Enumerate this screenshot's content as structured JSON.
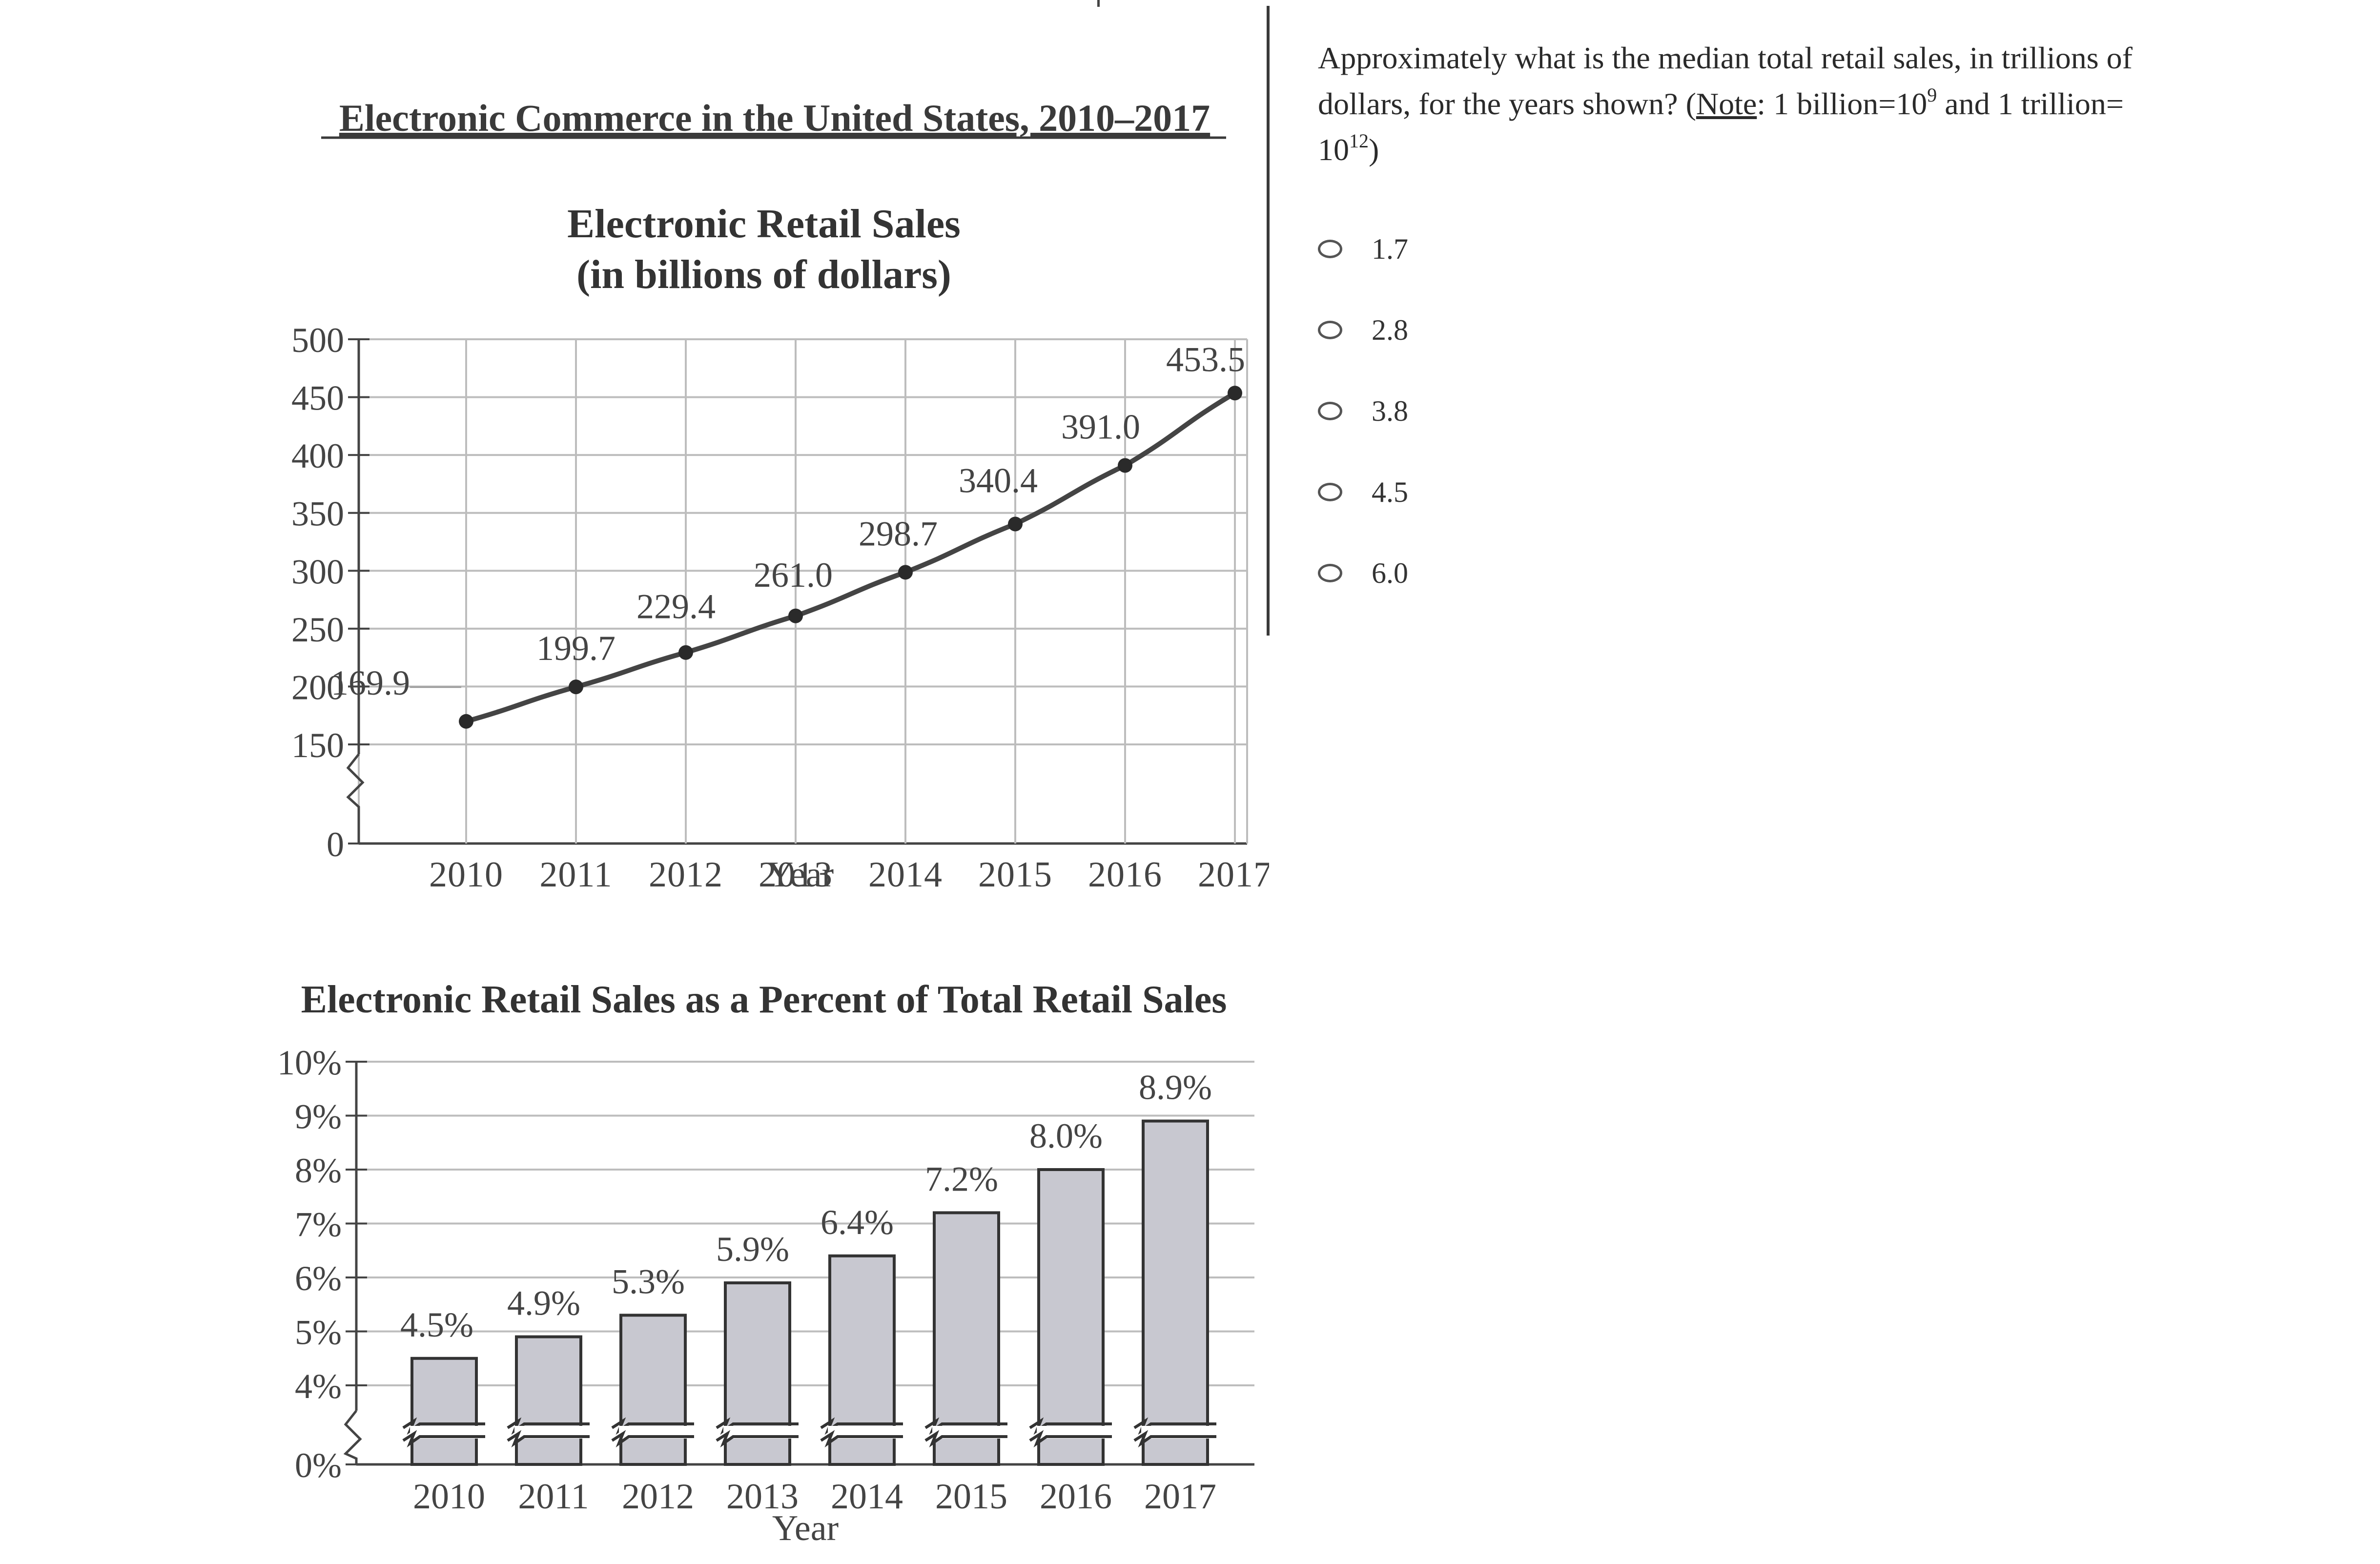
{
  "question": {
    "text_before": "Approximately what is the median total retail sales, in trillions of dollars, for the years shown? (",
    "note_word": "Note",
    "note_part1": ": 1 billion=10",
    "exp1": "9",
    "note_part2": " and 1 trillion=",
    "base2": "10",
    "exp2": "12",
    "closing": ")",
    "choices": [
      "1.7",
      "2.8",
      "3.8",
      "4.5",
      "6.0"
    ]
  },
  "chart_data": [
    {
      "type": "line",
      "title": "Electronic Commerce in the United States, 2010–2017",
      "subtitle_line1": "Electronic Retail Sales",
      "subtitle_line2": "(in billions of dollars)",
      "xlabel": "Year",
      "ylabel": "",
      "categories": [
        "2010",
        "2011",
        "2012",
        "2013",
        "2014",
        "2015",
        "2016",
        "2017"
      ],
      "values": [
        169.9,
        199.7,
        229.4,
        261.0,
        298.7,
        340.4,
        391.0,
        453.5
      ],
      "data_labels": [
        "169.9",
        "199.7",
        "229.4",
        "261.0",
        "298.7",
        "340.4",
        "391.0",
        "453.5"
      ],
      "y_ticks": [
        500,
        450,
        400,
        350,
        300,
        250,
        200,
        150,
        0
      ],
      "y_tick_labels": [
        "500",
        "450",
        "400",
        "350",
        "300",
        "250",
        "200",
        "150",
        "0"
      ],
      "ylim": [
        150,
        500
      ],
      "axis_break": true,
      "grid": true,
      "colors": {
        "line": "#444444",
        "point": "#2a2a2a",
        "grid": "#bdbdbd"
      }
    },
    {
      "type": "bar",
      "title": "Electronic Retail Sales as a Percent of Total Retail Sales",
      "xlabel": "Year",
      "ylabel": "",
      "categories": [
        "2010",
        "2011",
        "2012",
        "2013",
        "2014",
        "2015",
        "2016",
        "2017"
      ],
      "values": [
        4.5,
        4.9,
        5.3,
        5.9,
        6.4,
        7.2,
        8.0,
        8.9
      ],
      "data_labels": [
        "4.5%",
        "4.9%",
        "5.3%",
        "5.9%",
        "6.4%",
        "7.2%",
        "8.0%",
        "8.9%"
      ],
      "y_ticks": [
        10,
        9,
        8,
        7,
        6,
        5,
        4,
        0
      ],
      "y_tick_labels": [
        "10%",
        "9%",
        "8%",
        "7%",
        "6%",
        "5%",
        "4%",
        "0%"
      ],
      "ylim": [
        4,
        10
      ],
      "axis_break": true,
      "grid": true,
      "colors": {
        "bar": "#c8c8d0",
        "bar_edge": "#333333",
        "grid": "#bdbdbd"
      }
    }
  ]
}
